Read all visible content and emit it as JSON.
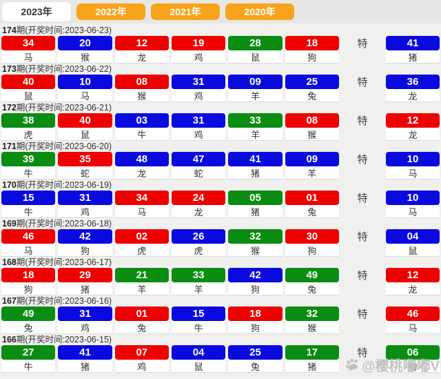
{
  "tabs": [
    {
      "label": "2023年",
      "active": true
    },
    {
      "label": "2022年",
      "active": false
    },
    {
      "label": "2021年",
      "active": false
    },
    {
      "label": "2020年",
      "active": false
    }
  ],
  "special_label": "特",
  "watermark": {
    "icon": "paw-icon",
    "text": "@樱桃嘟嘟V"
  },
  "colors": {
    "red": "#ee0000",
    "blue": "#0a0adf",
    "green": "#0b8c12",
    "tab_inactive_bg": "#f7a41c"
  },
  "rows": [
    {
      "period_num": "174",
      "period_rest": "期(开奖时间:2023-06-23)",
      "numbers": [
        {
          "n": "34",
          "c": "red",
          "z": "马"
        },
        {
          "n": "20",
          "c": "blue",
          "z": "猴"
        },
        {
          "n": "12",
          "c": "red",
          "z": "龙"
        },
        {
          "n": "19",
          "c": "red",
          "z": "鸡"
        },
        {
          "n": "28",
          "c": "green",
          "z": "鼠"
        },
        {
          "n": "18",
          "c": "red",
          "z": "狗"
        }
      ],
      "special": {
        "n": "41",
        "c": "blue",
        "z": "猪"
      }
    },
    {
      "period_num": "173",
      "period_rest": "期(开奖时间:2023-06-22)",
      "numbers": [
        {
          "n": "40",
          "c": "red",
          "z": "鼠"
        },
        {
          "n": "10",
          "c": "blue",
          "z": "马"
        },
        {
          "n": "08",
          "c": "red",
          "z": "猴"
        },
        {
          "n": "31",
          "c": "blue",
          "z": "鸡"
        },
        {
          "n": "09",
          "c": "blue",
          "z": "羊"
        },
        {
          "n": "25",
          "c": "blue",
          "z": "兔"
        }
      ],
      "special": {
        "n": "36",
        "c": "blue",
        "z": "龙"
      }
    },
    {
      "period_num": "172",
      "period_rest": "期(开奖时间:2023-06-21)",
      "numbers": [
        {
          "n": "38",
          "c": "green",
          "z": "虎"
        },
        {
          "n": "40",
          "c": "red",
          "z": "鼠"
        },
        {
          "n": "03",
          "c": "blue",
          "z": "牛"
        },
        {
          "n": "31",
          "c": "blue",
          "z": "鸡"
        },
        {
          "n": "33",
          "c": "green",
          "z": "羊"
        },
        {
          "n": "08",
          "c": "red",
          "z": "猴"
        }
      ],
      "special": {
        "n": "12",
        "c": "red",
        "z": "龙"
      }
    },
    {
      "period_num": "171",
      "period_rest": "期(开奖时间:2023-06-20)",
      "numbers": [
        {
          "n": "39",
          "c": "green",
          "z": "牛"
        },
        {
          "n": "35",
          "c": "red",
          "z": "蛇"
        },
        {
          "n": "48",
          "c": "blue",
          "z": "龙"
        },
        {
          "n": "47",
          "c": "blue",
          "z": "蛇"
        },
        {
          "n": "41",
          "c": "blue",
          "z": "猪"
        },
        {
          "n": "09",
          "c": "blue",
          "z": "羊"
        }
      ],
      "special": {
        "n": "10",
        "c": "blue",
        "z": "马"
      }
    },
    {
      "period_num": "170",
      "period_rest": "期(开奖时间:2023-06-19)",
      "numbers": [
        {
          "n": "15",
          "c": "blue",
          "z": "牛"
        },
        {
          "n": "31",
          "c": "blue",
          "z": "鸡"
        },
        {
          "n": "34",
          "c": "red",
          "z": "马"
        },
        {
          "n": "24",
          "c": "red",
          "z": "龙"
        },
        {
          "n": "05",
          "c": "green",
          "z": "猪"
        },
        {
          "n": "01",
          "c": "red",
          "z": "兔"
        }
      ],
      "special": {
        "n": "10",
        "c": "blue",
        "z": "马"
      }
    },
    {
      "period_num": "169",
      "period_rest": "期(开奖时间:2023-06-18)",
      "numbers": [
        {
          "n": "46",
          "c": "red",
          "z": "马"
        },
        {
          "n": "42",
          "c": "blue",
          "z": "狗"
        },
        {
          "n": "02",
          "c": "red",
          "z": "虎"
        },
        {
          "n": "26",
          "c": "blue",
          "z": "虎"
        },
        {
          "n": "32",
          "c": "green",
          "z": "猴"
        },
        {
          "n": "30",
          "c": "red",
          "z": "狗"
        }
      ],
      "special": {
        "n": "04",
        "c": "blue",
        "z": "鼠"
      }
    },
    {
      "period_num": "168",
      "period_rest": "期(开奖时间:2023-06-17)",
      "numbers": [
        {
          "n": "18",
          "c": "red",
          "z": "狗"
        },
        {
          "n": "29",
          "c": "red",
          "z": "猪"
        },
        {
          "n": "21",
          "c": "green",
          "z": "羊"
        },
        {
          "n": "33",
          "c": "green",
          "z": "羊"
        },
        {
          "n": "42",
          "c": "blue",
          "z": "狗"
        },
        {
          "n": "49",
          "c": "green",
          "z": "兔"
        }
      ],
      "special": {
        "n": "12",
        "c": "red",
        "z": "龙"
      }
    },
    {
      "period_num": "167",
      "period_rest": "期(开奖时间:2023-06-16)",
      "numbers": [
        {
          "n": "49",
          "c": "green",
          "z": "兔"
        },
        {
          "n": "31",
          "c": "blue",
          "z": "鸡"
        },
        {
          "n": "01",
          "c": "red",
          "z": "兔"
        },
        {
          "n": "15",
          "c": "blue",
          "z": "牛"
        },
        {
          "n": "18",
          "c": "red",
          "z": "狗"
        },
        {
          "n": "32",
          "c": "green",
          "z": "猴"
        }
      ],
      "special": {
        "n": "46",
        "c": "red",
        "z": "马"
      }
    },
    {
      "period_num": "166",
      "period_rest": "期(开奖时间:2023-06-15)",
      "numbers": [
        {
          "n": "27",
          "c": "green",
          "z": "牛"
        },
        {
          "n": "41",
          "c": "blue",
          "z": "猪"
        },
        {
          "n": "07",
          "c": "red",
          "z": "鸡"
        },
        {
          "n": "04",
          "c": "blue",
          "z": "鼠"
        },
        {
          "n": "25",
          "c": "blue",
          "z": "兔"
        },
        {
          "n": "17",
          "c": "green",
          "z": "猪"
        }
      ],
      "special": {
        "n": "06",
        "c": "green",
        "z": "狗"
      }
    }
  ]
}
